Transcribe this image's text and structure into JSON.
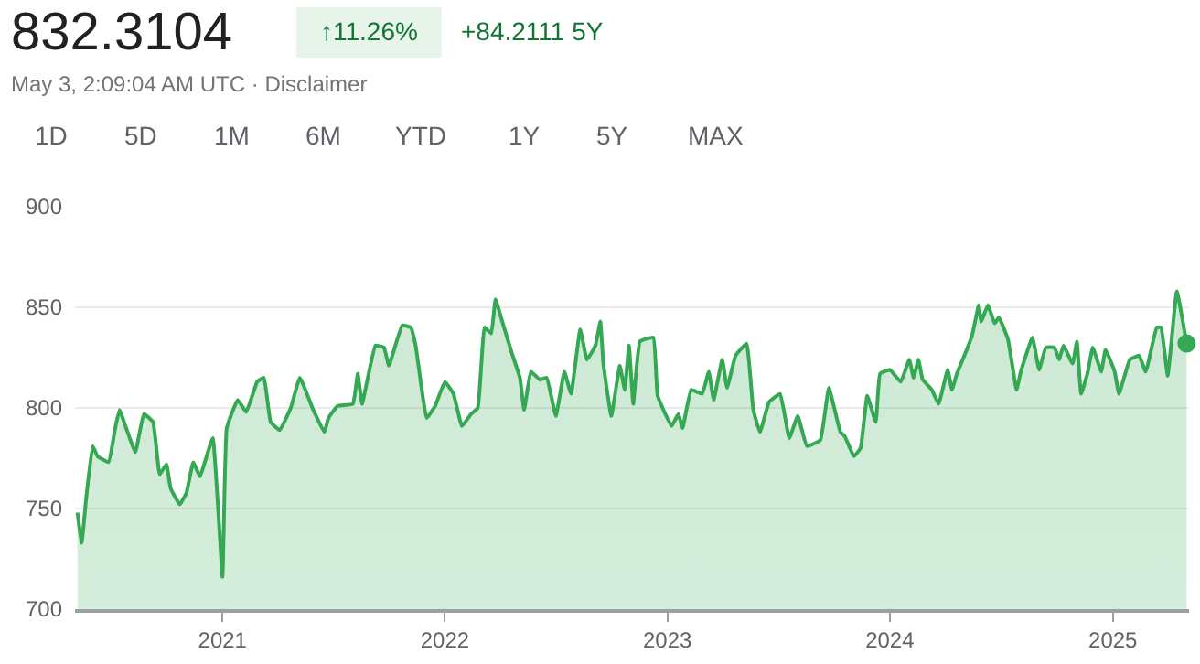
{
  "chart_data": {
    "type": "area",
    "title": "832.3104",
    "annotations": [
      "↑11.26%",
      "+84.2111 5Y",
      "May 3, 2:09:04 AM UTC · Disclaimer",
      "1D",
      "5D",
      "1M",
      "6M",
      "YTD",
      "1Y",
      "5Y",
      "MAX"
    ],
    "x": [
      "2020-05-08",
      "2020-05-15",
      "2020-05-22",
      "2020-06-02",
      "2020-06-10",
      "2020-06-28",
      "2020-07-09",
      "2020-07-16",
      "2020-07-27",
      "2020-08-11",
      "2020-08-25",
      "2020-09-09",
      "2020-09-20",
      "2020-10-01",
      "2020-10-08",
      "2020-10-23",
      "2020-11-03",
      "2020-11-14",
      "2020-11-25",
      "2020-12-16",
      "2021-01-01",
      "2021-01-08",
      "2021-01-26",
      "2021-02-09",
      "2021-02-27",
      "2021-03-10",
      "2021-03-21",
      "2021-04-05",
      "2021-04-23",
      "2021-05-08",
      "2021-05-30",
      "2021-06-17",
      "2021-06-24",
      "2021-07-09",
      "2021-08-03",
      "2021-08-11",
      "2021-08-18",
      "2021-09-09",
      "2021-09-23",
      "2021-10-01",
      "2021-10-23",
      "2021-11-06",
      "2021-11-14",
      "2021-12-02",
      "2021-12-16",
      "2022-01-01",
      "2022-01-15",
      "2022-01-29",
      "2022-02-13",
      "2022-02-24",
      "2022-03-07",
      "2022-03-18",
      "2022-03-25",
      "2022-04-05",
      "2022-04-20",
      "2022-05-04",
      "2022-05-11",
      "2022-05-22",
      "2022-06-06",
      "2022-06-17",
      "2022-07-02",
      "2022-07-16",
      "2022-07-27",
      "2022-08-11",
      "2022-08-22",
      "2022-09-05",
      "2022-09-13",
      "2022-09-18",
      "2022-10-01",
      "2022-10-15",
      "2022-10-23",
      "2022-10-30",
      "2022-11-06",
      "2022-11-17",
      "2022-12-09",
      "2022-12-16",
      "2023-01-08",
      "2023-01-19",
      "2023-01-26",
      "2023-02-09",
      "2023-02-27",
      "2023-03-10",
      "2023-03-18",
      "2023-04-01",
      "2023-04-09",
      "2023-04-23",
      "2023-05-11",
      "2023-05-22",
      "2023-06-02",
      "2023-06-17",
      "2023-07-05",
      "2023-07-20",
      "2023-08-03",
      "2023-08-18",
      "2023-09-09",
      "2023-09-23",
      "2023-10-12",
      "2023-10-19",
      "2023-11-03",
      "2023-11-14",
      "2023-11-25",
      "2023-12-09",
      "2023-12-16",
      "2024-01-01",
      "2024-01-19",
      "2024-02-02",
      "2024-02-09",
      "2024-02-17",
      "2024-02-24",
      "2024-03-10",
      "2024-03-21",
      "2024-04-05",
      "2024-04-12",
      "2024-04-20",
      "2024-05-01",
      "2024-05-15",
      "2024-05-26",
      "2024-05-30",
      "2024-06-10",
      "2024-06-21",
      "2024-06-28",
      "2024-07-13",
      "2024-07-27",
      "2024-08-03",
      "2024-08-22",
      "2024-09-02",
      "2024-09-13",
      "2024-09-27",
      "2024-10-05",
      "2024-10-12",
      "2024-10-27",
      "2024-11-03",
      "2024-11-10",
      "2024-11-21",
      "2024-11-29",
      "2024-12-13",
      "2024-12-20",
      "2025-01-04",
      "2025-01-11",
      "2025-01-29",
      "2025-02-13",
      "2025-02-24",
      "2025-03-14",
      "2025-03-21",
      "2025-04-01",
      "2025-04-16",
      "2025-05-02"
    ],
    "series": [
      {
        "color": "#34a853",
        "values": [
          748,
          733,
          754,
          781,
          776,
          773,
          790,
          799,
          790,
          778,
          797,
          793,
          767,
          772,
          760,
          752,
          758,
          773,
          766,
          785,
          716,
          790,
          804,
          798,
          813,
          815,
          793,
          789,
          800,
          815,
          799,
          788,
          795,
          801,
          802,
          817,
          802,
          831,
          830,
          821,
          841,
          840,
          831,
          795,
          801,
          813,
          807,
          791,
          797,
          800,
          840,
          837,
          854,
          843,
          828,
          815,
          799,
          818,
          814,
          815,
          796,
          818,
          807,
          839,
          824,
          831,
          843,
          822,
          796,
          821,
          809,
          831,
          802,
          833,
          835,
          806,
          791,
          797,
          790,
          809,
          807,
          818,
          804,
          824,
          810,
          826,
          832,
          799,
          788,
          803,
          807,
          785,
          796,
          781,
          784,
          810,
          788,
          786,
          776,
          780,
          806,
          793,
          817,
          819,
          813,
          824,
          815,
          824,
          814,
          809,
          802,
          819,
          809,
          817,
          825,
          836,
          851,
          843,
          851,
          842,
          845,
          834,
          809,
          818,
          835,
          819,
          830,
          830,
          824,
          831,
          822,
          833,
          807,
          818,
          830,
          818,
          829,
          818,
          807,
          824,
          826,
          818,
          840,
          840,
          816,
          858,
          832
        ]
      }
    ],
    "xlim": [
      "2020-05-04",
      "2025-05-06"
    ],
    "xticks": [
      {
        "value": "2021-01-01",
        "label": "2021"
      },
      {
        "value": "2022-01-01",
        "label": "2022"
      },
      {
        "value": "2023-01-01",
        "label": "2023"
      },
      {
        "value": "2024-01-01",
        "label": "2024"
      },
      {
        "value": "2025-01-01",
        "label": "2025"
      }
    ],
    "ylim": [
      700,
      900
    ],
    "yticks": [
      700,
      750,
      800,
      850,
      900
    ],
    "grid": "y"
  }
}
